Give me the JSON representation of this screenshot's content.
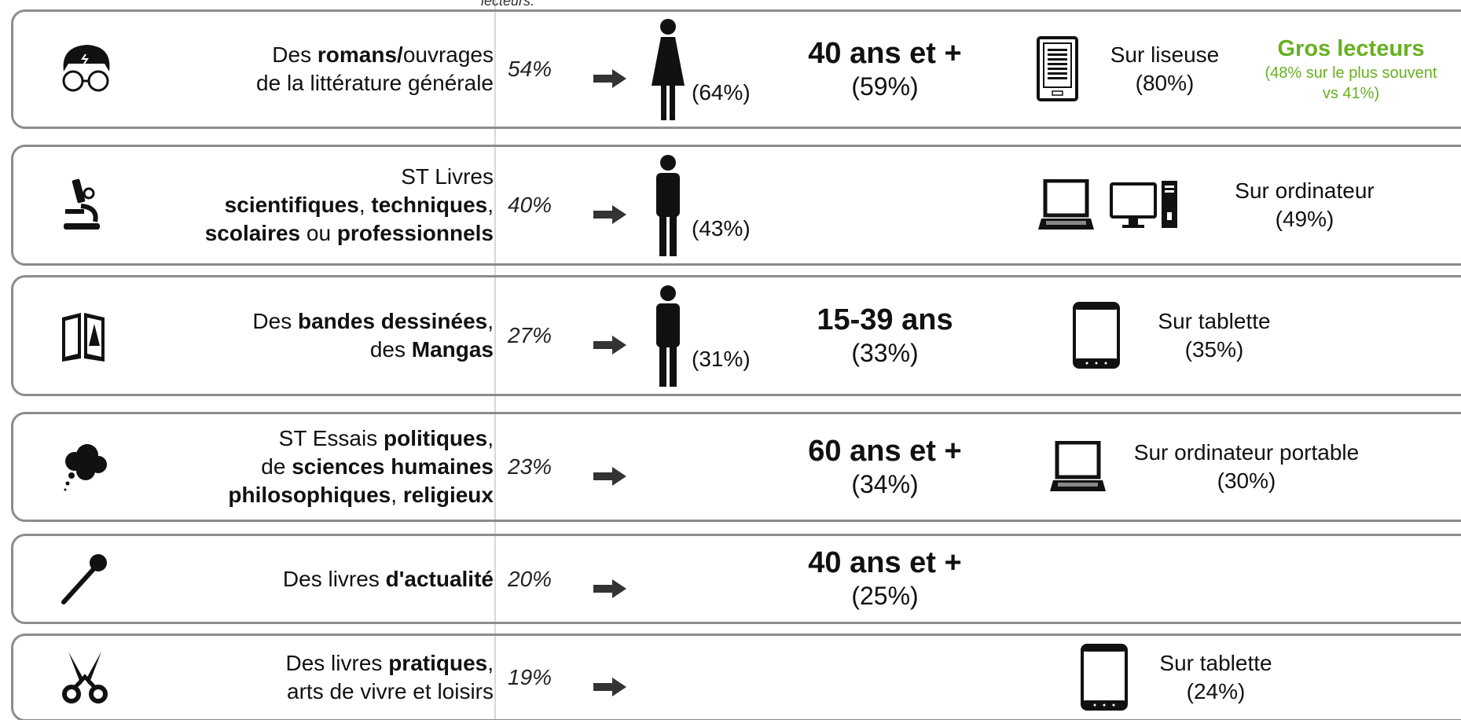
{
  "top_note": "lecteurs.",
  "rows": [
    {
      "genre": [
        [
          {
            "text": "Des "
          },
          {
            "text": "romans/",
            "bold": true
          },
          {
            "text": "ouvrages"
          }
        ],
        [
          {
            "text": "de la littérature générale"
          }
        ]
      ],
      "share": "54%",
      "gender_share": "(64%)",
      "age": "40 ans et +",
      "age_share": "(59%)",
      "device": "Sur liseuse",
      "device_share": "(80%)",
      "highlight": "Gros lecteurs",
      "highlight_note": [
        "(48% sur le plus souvent",
        "vs 41%)"
      ]
    },
    {
      "genre": [
        [
          {
            "text": "ST Livres"
          }
        ],
        [
          {
            "text": "scientifiques",
            "bold": true
          },
          {
            "text": ", "
          },
          {
            "text": "techniques",
            "bold": true
          },
          {
            "text": ","
          }
        ],
        [
          {
            "text": "scolaires",
            "bold": true
          },
          {
            "text": " ou "
          },
          {
            "text": "professionnels",
            "bold": true
          }
        ]
      ],
      "share": "40%",
      "gender_share": "(43%)",
      "device": "Sur ordinateur",
      "device_share": "(49%)"
    },
    {
      "genre": [
        [
          {
            "text": "Des "
          },
          {
            "text": "bandes dessinées",
            "bold": true
          },
          {
            "text": ","
          }
        ],
        [
          {
            "text": "des "
          },
          {
            "text": "Mangas",
            "bold": true
          }
        ]
      ],
      "share": "27%",
      "gender_share": "(31%)",
      "age": "15-39 ans",
      "age_share": "(33%)",
      "device": "Sur tablette",
      "device_share": "(35%)"
    },
    {
      "genre": [
        [
          {
            "text": "ST Essais "
          },
          {
            "text": "politiques",
            "bold": true
          },
          {
            "text": ","
          }
        ],
        [
          {
            "text": "de "
          },
          {
            "text": "sciences humaines",
            "bold": true
          }
        ],
        [
          {
            "text": "philosophiques",
            "bold": true
          },
          {
            "text": ", "
          },
          {
            "text": "religieux",
            "bold": true
          }
        ]
      ],
      "share": "23%",
      "age": "60 ans et +",
      "age_share": "(34%)",
      "device": "Sur ordinateur portable",
      "device_share": "(30%)"
    },
    {
      "genre": [
        [
          {
            "text": "Des livres "
          },
          {
            "text": "d'actualité",
            "bold": true
          }
        ]
      ],
      "share": "20%",
      "age": "40 ans et +",
      "age_share": "(25%)"
    },
    {
      "genre": [
        [
          {
            "text": "Des livres "
          },
          {
            "text": "pratiques",
            "bold": true
          },
          {
            "text": ","
          }
        ],
        [
          {
            "text": "arts de vivre et loisirs"
          }
        ]
      ],
      "share": "19%",
      "device": "Sur tablette",
      "device_share": "(24%)"
    }
  ]
}
